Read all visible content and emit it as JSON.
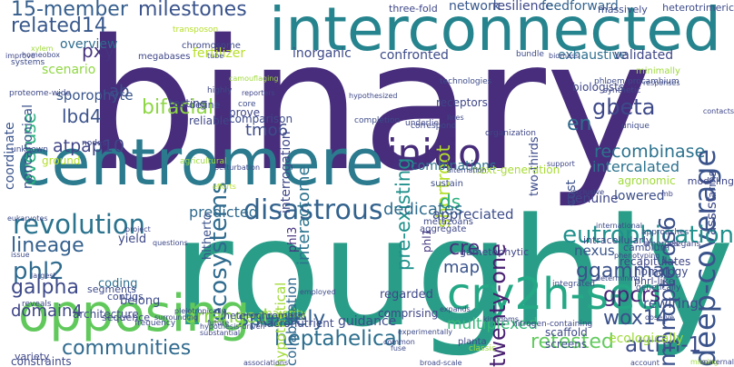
{
  "words": [
    {
      "text": "binary",
      "color": "#472d7b"
    },
    {
      "text": "roughly",
      "color": "#2a9d88"
    },
    {
      "text": "interconnected",
      "color": "#26848e"
    },
    {
      "text": "centromere",
      "color": "#2b7a8e"
    },
    {
      "text": "opposing",
      "color": "#61c95b"
    },
    {
      "text": "cry2h-seq",
      "color": "#24a885"
    },
    {
      "text": "initio",
      "color": "#472c7a"
    },
    {
      "text": "deep-coverage",
      "color": "#3a538b"
    },
    {
      "text": "disastrous",
      "color": "#33628d"
    },
    {
      "text": "revolution",
      "color": "#2b738e"
    },
    {
      "text": "eutrophication",
      "color": "#20908c"
    },
    {
      "text": "ecosystems",
      "color": "#2f6b8e"
    },
    {
      "text": "heptahelical",
      "color": "#2d6f8e"
    },
    {
      "text": "sparsely",
      "color": "#34608d"
    },
    {
      "text": "communities",
      "color": "#306a8e"
    },
    {
      "text": "retested",
      "color": "#63cb5f"
    },
    {
      "text": "attfin-1",
      "color": "#3d4d8a"
    },
    {
      "text": "wox14",
      "color": "#3b518b"
    },
    {
      "text": "milestones",
      "color": "#3a538b"
    },
    {
      "text": "bifacial",
      "color": "#8ed645"
    },
    {
      "text": "related14",
      "color": "#38588c"
    },
    {
      "text": "15-member",
      "color": "#355e8d"
    },
    {
      "text": "pre-existing",
      "color": "#21918c"
    },
    {
      "text": "twenty-one",
      "color": "#482071"
    },
    {
      "text": "monopteros6",
      "color": "#3b518b"
    },
    {
      "text": "phl2",
      "color": "#2f6b8e"
    },
    {
      "text": "lineage",
      "color": "#34608d"
    },
    {
      "text": "galpha",
      "color": "#3e4a89"
    },
    {
      "text": "arranged",
      "color": "#8bd646"
    },
    {
      "text": "ggamma",
      "color": "#3b528b"
    },
    {
      "text": "gpcrs",
      "color": "#482576"
    },
    {
      "text": "gbeta",
      "color": "#3e4989"
    },
    {
      "text": "recombinase",
      "color": "#2c728e"
    },
    {
      "text": "atpap10",
      "color": "#404588"
    },
    {
      "text": "lbd4",
      "color": "#3b528b"
    },
    {
      "text": "overuse",
      "color": "#2ab07f"
    },
    {
      "text": "pxy",
      "color": "#46337e"
    },
    {
      "text": "shortroot",
      "color": "#b5de2b"
    },
    {
      "text": "interactome",
      "color": "#2c738e"
    },
    {
      "text": "tmo6",
      "color": "#3e4c8a"
    },
    {
      "text": "en",
      "color": "#306a8e"
    },
    {
      "text": "ds",
      "color": "#2ab07f"
    },
    {
      "text": "cre",
      "color": "#46307e"
    },
    {
      "text": "ab",
      "color": "#3d4e8a"
    },
    {
      "text": "map",
      "color": "#3a548c"
    },
    {
      "text": "domain4",
      "color": "#404588"
    },
    {
      "text": "dedicates",
      "color": "#2f6c8e"
    },
    {
      "text": "predicted",
      "color": "#306a8e"
    },
    {
      "text": "multiplexed",
      "color": "#37b878"
    },
    {
      "text": "collaboration",
      "color": "#31688e"
    },
    {
      "text": "hypothetical",
      "color": "#a2da37"
    },
    {
      "text": "intercalated",
      "color": "#2c728e"
    },
    {
      "text": "inorganic",
      "color": "#3e4a89"
    },
    {
      "text": "confronted",
      "color": "#3e4c8a"
    },
    {
      "text": "exhaustive",
      "color": "#2e6e8e"
    },
    {
      "text": "validated",
      "color": "#3f4788"
    },
    {
      "text": "fertilizer",
      "color": "#b8de29"
    },
    {
      "text": "interrogation",
      "color": "#3f4889"
    },
    {
      "text": "coordinate",
      "color": "#3a548c"
    },
    {
      "text": "noncanonical",
      "color": "#3b518b"
    },
    {
      "text": "scenario",
      "color": "#90d743"
    },
    {
      "text": "sporophyte",
      "color": "#39568c"
    },
    {
      "text": "overview",
      "color": "#2f6c8e"
    },
    {
      "text": "network",
      "color": "#38588c"
    },
    {
      "text": "resilience",
      "color": "#3e4989"
    },
    {
      "text": "feedforward",
      "color": "#33638d"
    },
    {
      "text": "nexus",
      "color": "#39568c"
    },
    {
      "text": "cost",
      "color": "#3c4f8a"
    },
    {
      "text": "appreciated",
      "color": "#3d4d8a"
    },
    {
      "text": "genuine",
      "color": "#3f4788"
    },
    {
      "text": "lowered",
      "color": "#3c4f8a"
    },
    {
      "text": "yield",
      "color": "#3e4989"
    },
    {
      "text": "belong",
      "color": "#3e4c8a"
    },
    {
      "text": "coding",
      "color": "#2e6e8e"
    },
    {
      "text": "comprising",
      "color": "#404688"
    },
    {
      "text": "regarded",
      "color": "#3f4788"
    },
    {
      "text": "guidance",
      "color": "#3d4d8a"
    },
    {
      "text": "hitherto",
      "color": "#3b518b"
    },
    {
      "text": "phl3",
      "color": "#46327e"
    },
    {
      "text": "phl1",
      "color": "#453781"
    },
    {
      "text": "ecologically",
      "color": "#9fda3a"
    },
    {
      "text": "rewiring",
      "color": "#3d4e8a"
    },
    {
      "text": "assist",
      "color": "#3e4a89"
    },
    {
      "text": "combinations",
      "color": "#2c738e"
    },
    {
      "text": "two-thirds",
      "color": "#3e4c8a"
    },
    {
      "text": "next-generation",
      "color": "#a8db34"
    },
    {
      "text": "agronomic",
      "color": "#9fda3a"
    },
    {
      "text": "biologists",
      "color": "#3f4788"
    },
    {
      "text": "receptors",
      "color": "#3f4788"
    },
    {
      "text": "comparison",
      "color": "#3e4c8a"
    },
    {
      "text": "testing",
      "color": "#3f4788"
    },
    {
      "text": "prove",
      "color": "#404688"
    },
    {
      "text": "define",
      "color": "#3e4c8a"
    },
    {
      "text": "reliable",
      "color": "#3f4788"
    },
    {
      "text": "ground",
      "color": "#b5de2b"
    },
    {
      "text": "constraints",
      "color": "#3e4a89"
    },
    {
      "text": "architecture",
      "color": "#3e4989"
    },
    {
      "text": "variety",
      "color": "#3f4788"
    },
    {
      "text": "contigs",
      "color": "#3e4c8a"
    },
    {
      "text": "sequence",
      "color": "#404688"
    },
    {
      "text": "segments",
      "color": "#3e4a89"
    },
    {
      "text": "majority",
      "color": "#9fda3a"
    },
    {
      "text": "macronutrient",
      "color": "#3e4989"
    },
    {
      "text": "heterochromatic",
      "color": "#3e4c8a"
    },
    {
      "text": "planta",
      "color": "#3f4788"
    },
    {
      "text": "scaffold",
      "color": "#3e4989"
    },
    {
      "text": "screens",
      "color": "#3d4e8a"
    },
    {
      "text": "recapitulates",
      "color": "#3f4788"
    },
    {
      "text": "homology",
      "color": "#3e4a89"
    },
    {
      "text": "phrl-like",
      "color": "#3f4788"
    },
    {
      "text": "cambium",
      "color": "#3d4e8a"
    },
    {
      "text": "intracellularly",
      "color": "#3f4788"
    },
    {
      "text": "gametophytic",
      "color": "#3f4788"
    },
    {
      "text": "aggregate",
      "color": "#3f4788"
    },
    {
      "text": "sustain",
      "color": "#3e4c8a"
    },
    {
      "text": "metazoans",
      "color": "#3e4989"
    },
    {
      "text": "modeling",
      "color": "#3f4788"
    },
    {
      "text": "arms",
      "color": "#3e4c8a"
    },
    {
      "text": "three-fold",
      "color": "#3f4788"
    },
    {
      "text": "massively",
      "color": "#3e4c8a"
    },
    {
      "text": "heterotrimeric",
      "color": "#3e4c8a"
    },
    {
      "text": "transposon",
      "color": "#b5de2b"
    },
    {
      "text": "chromosome",
      "color": "#3e4989"
    },
    {
      "text": "megabases",
      "color": "#3f4788"
    },
    {
      "text": "bundle",
      "color": "#3e4c8a"
    },
    {
      "text": "minimally",
      "color": "#9fda3a"
    },
    {
      "text": "xylem",
      "color": "#9fda3a"
    },
    {
      "text": "homeobox",
      "color": "#3e4989"
    },
    {
      "text": "systems",
      "color": "#3e4c8a"
    },
    {
      "text": "proteome-wide",
      "color": "#3e4989"
    },
    {
      "text": "phloem-procambium",
      "color": "#3e4c8a"
    },
    {
      "text": "synthetic",
      "color": "#3f4788"
    },
    {
      "text": "technologies",
      "color": "#3e4c8a"
    },
    {
      "text": "hypothesized",
      "color": "#3e4989"
    },
    {
      "text": "reporters",
      "color": "#3f4788"
    },
    {
      "text": "core",
      "color": "#3e4c8a"
    },
    {
      "text": "highly",
      "color": "#3f4788"
    },
    {
      "text": "completion",
      "color": "#3e4c8a"
    },
    {
      "text": "underlie",
      "color": "#3f4788"
    },
    {
      "text": "correspond",
      "color": "#3e4989"
    },
    {
      "text": "unique",
      "color": "#3e4c8a"
    },
    {
      "text": "organization",
      "color": "#3f4788"
    },
    {
      "text": "agricultural",
      "color": "#9fda3a"
    },
    {
      "text": "perturbation",
      "color": "#3e4989"
    },
    {
      "text": "unknown",
      "color": "#3e4c8a"
    },
    {
      "text": "nodes",
      "color": "#3f4788"
    },
    {
      "text": "efforts",
      "color": "#b5de2b"
    },
    {
      "text": "support",
      "color": "#3f4788"
    },
    {
      "text": "alternation",
      "color": "#3e4c8a"
    },
    {
      "text": "exclusive",
      "color": "#3e4989"
    },
    {
      "text": "international",
      "color": "#3e4c8a"
    },
    {
      "text": "phenotyping",
      "color": "#3f4788"
    },
    {
      "text": "genetically",
      "color": "#3e4989"
    },
    {
      "text": "approaches",
      "color": "#3e4c8a"
    },
    {
      "text": "elegans",
      "color": "#3f4788"
    },
    {
      "text": "emerges",
      "color": "#3e4989"
    },
    {
      "text": "observe",
      "color": "#3e4c8a"
    },
    {
      "text": "missing",
      "color": "#9fda3a"
    },
    {
      "text": "maternal",
      "color": "#3f4788"
    },
    {
      "text": "account",
      "color": "#3e4989"
    },
    {
      "text": "integrated",
      "color": "#3e4c8a"
    },
    {
      "text": "nitrogen-containing",
      "color": "#3f4788"
    },
    {
      "text": "classic",
      "color": "#9fda3a"
    },
    {
      "text": "broad-scale",
      "color": "#3e4989"
    },
    {
      "text": "fuse",
      "color": "#3e4c8a"
    },
    {
      "text": "associations",
      "color": "#3f4788"
    },
    {
      "text": "common",
      "color": "#3e4989"
    },
    {
      "text": "experimentally",
      "color": "#3e4c8a"
    },
    {
      "text": "kingdoms",
      "color": "#3f4788"
    },
    {
      "text": "expands",
      "color": "#3e4989"
    },
    {
      "text": "frequency",
      "color": "#3e4c8a"
    },
    {
      "text": "surrounding",
      "color": "#3f4788"
    },
    {
      "text": "pleiotropically",
      "color": "#3e4989"
    },
    {
      "text": "hypothesis-driven",
      "color": "#3e4c8a"
    },
    {
      "text": "substantial",
      "color": "#3f4788"
    },
    {
      "text": "future",
      "color": "#3e4989"
    },
    {
      "text": "employed",
      "color": "#3e4c8a"
    },
    {
      "text": "reveals",
      "color": "#3f4788"
    },
    {
      "text": "largest",
      "color": "#3e4989"
    },
    {
      "text": "issue",
      "color": "#3e4c8a"
    },
    {
      "text": "project",
      "color": "#3f4788"
    },
    {
      "text": "questions",
      "color": "#3e4989"
    },
    {
      "text": "eukaryotes",
      "color": "#3e4c8a"
    },
    {
      "text": "improve",
      "color": "#3f4788"
    },
    {
      "text": "biomass",
      "color": "#3e4989"
    },
    {
      "text": "camouflaging",
      "color": "#9fda3a"
    },
    {
      "text": "responses",
      "color": "#3e4c8a"
    },
    {
      "text": "contacts",
      "color": "#3f4788"
    },
    {
      "text": "lines",
      "color": "#3e4989"
    },
    {
      "text": "determining",
      "color": "#3e4c8a"
    },
    {
      "text": "mb",
      "color": "#3f4788"
    },
    {
      "text": "tube",
      "color": "#3e4989"
    },
    {
      "text": "genomics",
      "color": "#3e4c8a"
    },
    {
      "text": "excessive",
      "color": "#3f4788"
    },
    {
      "text": "small-molecule",
      "color": "#3e4989"
    },
    {
      "text": "dependent",
      "color": "#3e4c8a"
    },
    {
      "text": "angiosperms",
      "color": "#3f4788"
    },
    {
      "text": "initiative",
      "color": "#9fda3a"
    }
  ]
}
